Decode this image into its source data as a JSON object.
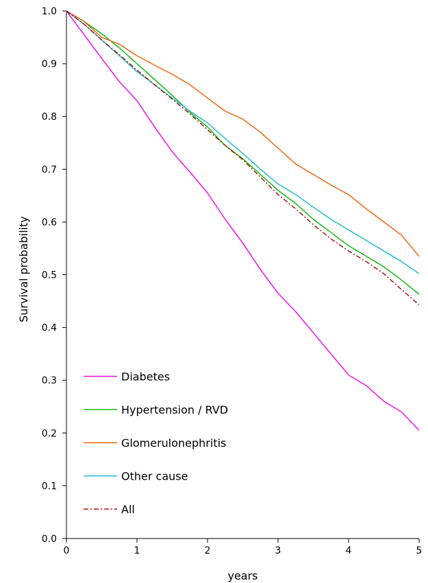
{
  "chart_data": {
    "type": "line",
    "title": "",
    "xlabel": "years",
    "ylabel": "Survival probability",
    "xlim": [
      0,
      5
    ],
    "ylim": [
      0.0,
      1.0
    ],
    "xticks": [
      "0",
      "1",
      "2",
      "3",
      "4",
      "5"
    ],
    "yticks": [
      "0.0",
      "0.1",
      "0.2",
      "0.3",
      "0.4",
      "0.5",
      "0.6",
      "0.7",
      "0.8",
      "0.9",
      "1.0"
    ],
    "grid": false,
    "legend_position": "bottom-left",
    "series": [
      {
        "name": "Diabetes",
        "color": "#ee11ee",
        "dash": "solid",
        "x": [
          0,
          0.25,
          0.5,
          0.75,
          1.0,
          1.25,
          1.5,
          1.75,
          2.0,
          2.25,
          2.5,
          2.75,
          3.0,
          3.25,
          3.5,
          3.75,
          4.0,
          4.25,
          4.5,
          4.75,
          5.0
        ],
        "y": [
          1.0,
          0.955,
          0.91,
          0.866,
          0.83,
          0.78,
          0.733,
          0.695,
          0.655,
          0.605,
          0.56,
          0.51,
          0.465,
          0.43,
          0.39,
          0.35,
          0.31,
          0.29,
          0.26,
          0.24,
          0.205
        ]
      },
      {
        "name": "Hypertension / RVD",
        "color": "#11bb11",
        "dash": "solid",
        "x": [
          0,
          0.25,
          0.5,
          0.75,
          1.0,
          1.25,
          1.5,
          1.75,
          2.0,
          2.25,
          2.5,
          2.75,
          3.0,
          3.25,
          3.5,
          3.75,
          4.0,
          4.25,
          4.5,
          4.75,
          5.0
        ],
        "y": [
          1.0,
          0.98,
          0.957,
          0.93,
          0.9,
          0.87,
          0.84,
          0.808,
          0.78,
          0.745,
          0.72,
          0.69,
          0.66,
          0.635,
          0.605,
          0.58,
          0.555,
          0.535,
          0.515,
          0.49,
          0.463
        ]
      },
      {
        "name": "Glomerulonephritis",
        "color": "#ee6611",
        "dash": "solid",
        "x": [
          0,
          0.25,
          0.5,
          0.75,
          1.0,
          1.25,
          1.5,
          1.75,
          2.0,
          2.25,
          2.5,
          2.75,
          3.0,
          3.25,
          3.5,
          3.75,
          4.0,
          4.25,
          4.5,
          4.75,
          5.0
        ],
        "y": [
          1.0,
          0.98,
          0.95,
          0.937,
          0.915,
          0.897,
          0.88,
          0.86,
          0.835,
          0.81,
          0.795,
          0.77,
          0.74,
          0.71,
          0.69,
          0.67,
          0.652,
          0.625,
          0.6,
          0.575,
          0.535
        ]
      },
      {
        "name": "Other cause",
        "color": "#22bbcc",
        "dash": "solid",
        "x": [
          0,
          0.25,
          0.5,
          0.75,
          1.0,
          1.25,
          1.5,
          1.75,
          2.0,
          2.25,
          2.5,
          2.75,
          3.0,
          3.25,
          3.5,
          3.75,
          4.0,
          4.25,
          4.5,
          4.75,
          5.0
        ],
        "y": [
          1.0,
          0.975,
          0.945,
          0.915,
          0.885,
          0.86,
          0.835,
          0.81,
          0.788,
          0.758,
          0.73,
          0.7,
          0.672,
          0.652,
          0.628,
          0.605,
          0.585,
          0.565,
          0.545,
          0.525,
          0.502
        ]
      },
      {
        "name": "All",
        "color": "#aa1111",
        "dash": "dashdot",
        "x": [
          0,
          0.25,
          0.5,
          0.75,
          1.0,
          1.25,
          1.5,
          1.75,
          2.0,
          2.25,
          2.5,
          2.75,
          3.0,
          3.25,
          3.5,
          3.75,
          4.0,
          4.25,
          4.5,
          4.75,
          5.0
        ],
        "y": [
          1.0,
          0.975,
          0.945,
          0.917,
          0.888,
          0.86,
          0.833,
          0.805,
          0.775,
          0.745,
          0.718,
          0.685,
          0.652,
          0.625,
          0.595,
          0.568,
          0.545,
          0.525,
          0.502,
          0.472,
          0.443
        ]
      }
    ]
  }
}
